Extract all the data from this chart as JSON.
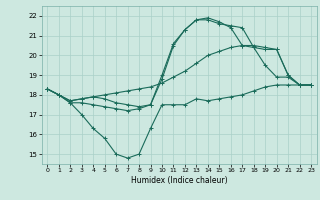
{
  "title": "",
  "xlabel": "Humidex (Indice chaleur)",
  "bg_color": "#cde8e0",
  "grid_color": "#aad0c8",
  "line_color": "#1a6b5a",
  "xlim": [
    -0.5,
    23.5
  ],
  "ylim": [
    14.5,
    22.5
  ],
  "xticks": [
    0,
    1,
    2,
    3,
    4,
    5,
    6,
    7,
    8,
    9,
    10,
    11,
    12,
    13,
    14,
    15,
    16,
    17,
    18,
    19,
    20,
    21,
    22,
    23
  ],
  "yticks": [
    15,
    16,
    17,
    18,
    19,
    20,
    21,
    22
  ],
  "line1_x": [
    0,
    1,
    2,
    3,
    4,
    5,
    6,
    7,
    8,
    9,
    10,
    11,
    12,
    13,
    14,
    15,
    16,
    17,
    18,
    19,
    20,
    21,
    22,
    23
  ],
  "line1_y": [
    18.3,
    18.0,
    17.6,
    17.0,
    16.3,
    15.8,
    15.0,
    14.8,
    15.0,
    16.3,
    17.5,
    17.5,
    17.5,
    17.8,
    17.7,
    17.8,
    17.9,
    18.0,
    18.2,
    18.4,
    18.5,
    18.5,
    18.5,
    18.5
  ],
  "line2_x": [
    0,
    1,
    2,
    3,
    4,
    5,
    6,
    7,
    8,
    9,
    10,
    11,
    12,
    13,
    14,
    15,
    16,
    17,
    18,
    19,
    20,
    21,
    22,
    23
  ],
  "line2_y": [
    18.3,
    18.0,
    17.7,
    17.8,
    17.9,
    18.0,
    18.1,
    18.2,
    18.3,
    18.4,
    18.6,
    18.9,
    19.2,
    19.6,
    20.0,
    20.2,
    20.4,
    20.5,
    20.5,
    20.4,
    20.3,
    19.0,
    18.5,
    18.5
  ],
  "line3_x": [
    0,
    1,
    2,
    3,
    4,
    5,
    6,
    7,
    8,
    9,
    10,
    11,
    12,
    13,
    14,
    15,
    16,
    17,
    18,
    19,
    20,
    21,
    22,
    23
  ],
  "line3_y": [
    18.3,
    18.0,
    17.6,
    17.6,
    17.5,
    17.4,
    17.3,
    17.2,
    17.3,
    17.5,
    18.8,
    20.5,
    21.3,
    21.8,
    21.8,
    21.6,
    21.5,
    21.4,
    20.4,
    20.3,
    20.3,
    19.0,
    18.5,
    18.5
  ],
  "line4_x": [
    0,
    1,
    2,
    3,
    4,
    5,
    6,
    7,
    8,
    9,
    10,
    11,
    12,
    13,
    14,
    15,
    16,
    17,
    18,
    19,
    20,
    21,
    22,
    23
  ],
  "line4_y": [
    18.3,
    18.0,
    17.7,
    17.8,
    17.9,
    17.8,
    17.6,
    17.5,
    17.4,
    17.5,
    19.0,
    20.6,
    21.3,
    21.8,
    21.9,
    21.7,
    21.4,
    20.5,
    20.4,
    19.5,
    18.9,
    18.9,
    18.5,
    18.5
  ]
}
